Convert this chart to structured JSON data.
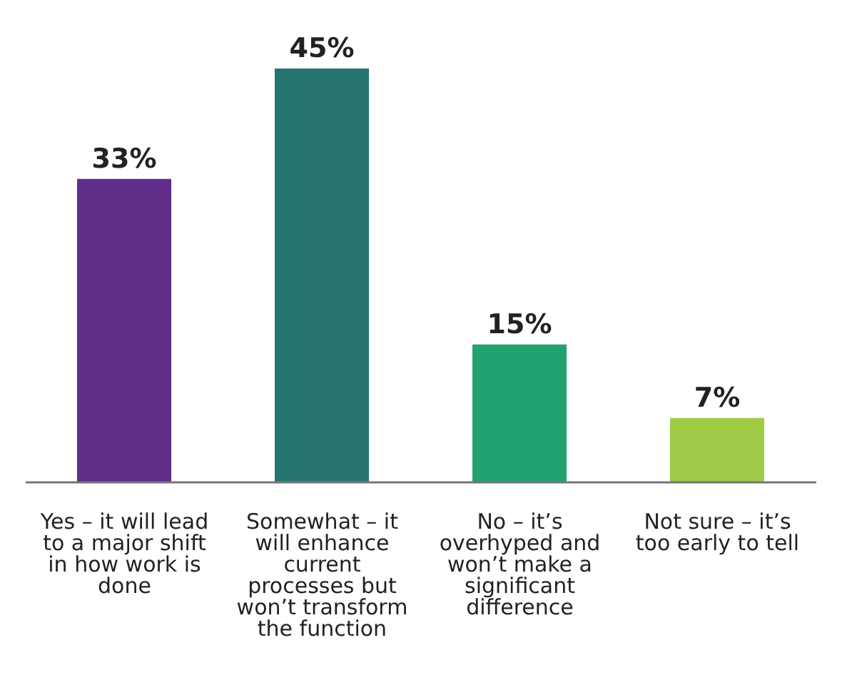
{
  "chart_data": {
    "type": "bar",
    "categories": [
      "Yes – it will lead to a major shift in how work is done",
      "Somewhat – it will enhance current processes but won’t transform the function",
      "No – it’s overhyped and won’t make a significant difference",
      "Not sure – it’s too early to tell"
    ],
    "values": [
      33,
      45,
      15,
      7
    ],
    "colors": [
      "#622d89",
      "#25746f",
      "#20a370",
      "#9fcb47"
    ],
    "value_labels": [
      "33%",
      "45%",
      "15%",
      "7%"
    ],
    "grid": false,
    "legend": false
  }
}
